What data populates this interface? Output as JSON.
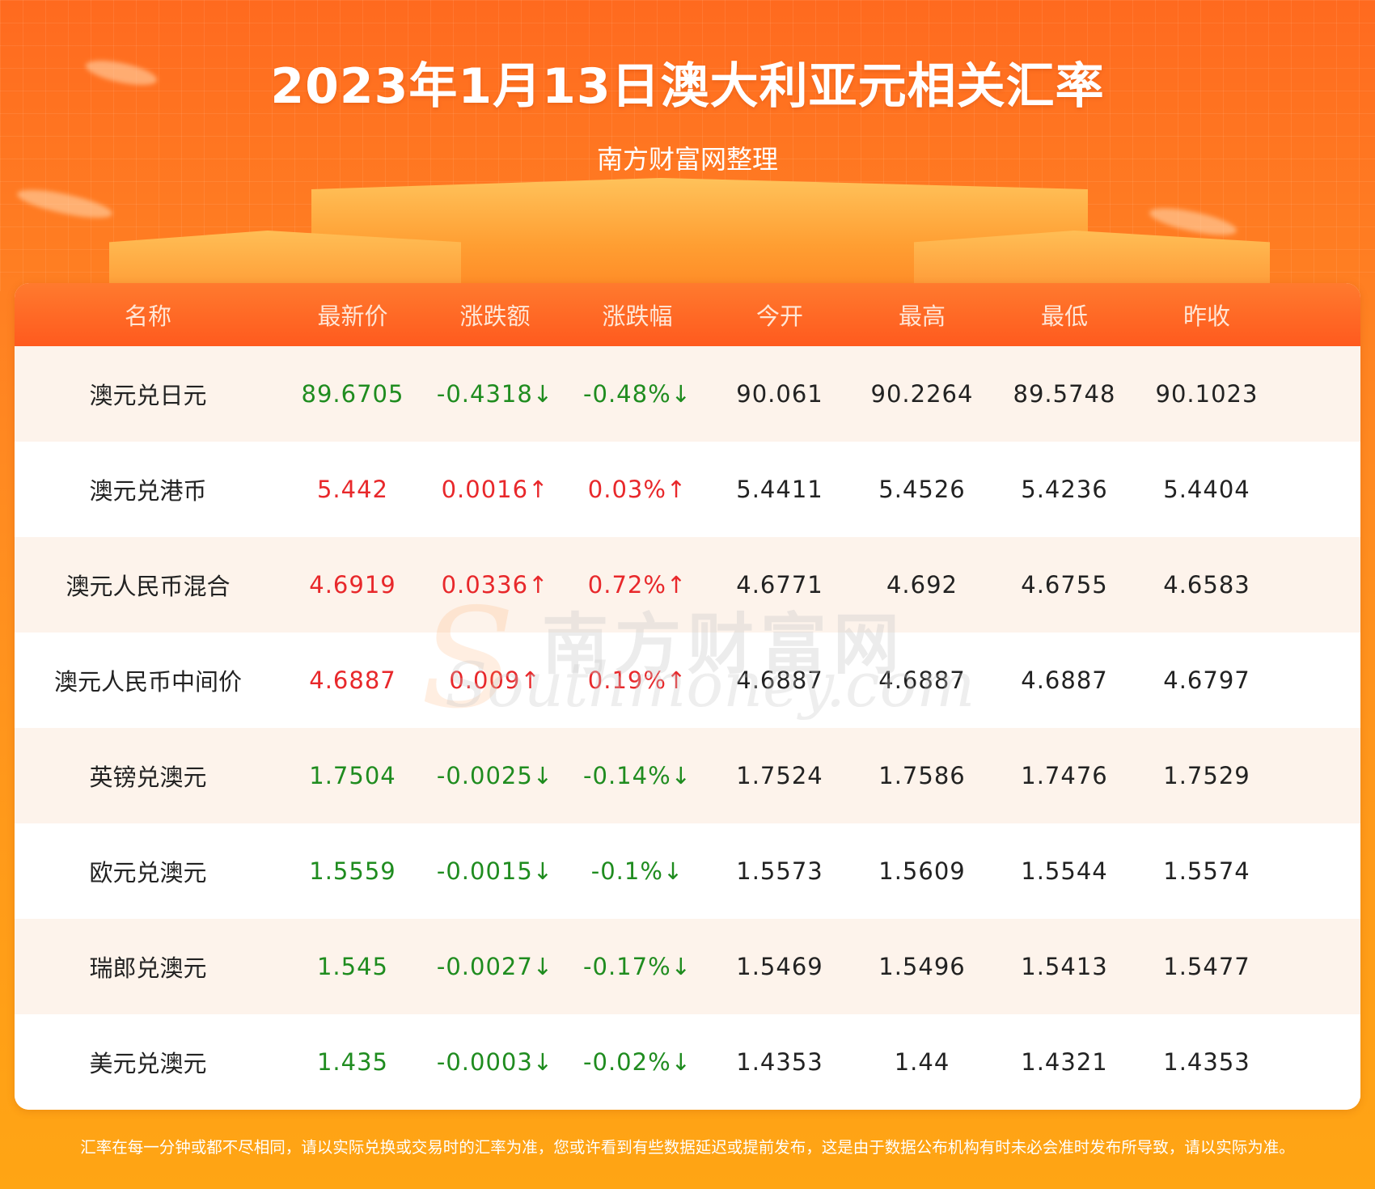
{
  "title": "2023年1月13日澳大利亚元相关汇率",
  "subtitle": "南方财富网整理",
  "table": {
    "headers": [
      "名称",
      "最新价",
      "涨跌额",
      "涨跌幅",
      "今开",
      "最高",
      "最低",
      "昨收"
    ],
    "rows": [
      {
        "name": "澳元兑日元",
        "latest": "89.6705",
        "change": "-0.4318↓",
        "change_pct": "-0.48%↓",
        "open": "90.061",
        "high": "90.2264",
        "low": "89.5748",
        "prev_close": "90.1023",
        "trend": "down"
      },
      {
        "name": "澳元兑港币",
        "latest": "5.442",
        "change": "0.0016↑",
        "change_pct": "0.03%↑",
        "open": "5.4411",
        "high": "5.4526",
        "low": "5.4236",
        "prev_close": "5.4404",
        "trend": "up"
      },
      {
        "name": "澳元人民币混合",
        "latest": "4.6919",
        "change": "0.0336↑",
        "change_pct": "0.72%↑",
        "open": "4.6771",
        "high": "4.692",
        "low": "4.6755",
        "prev_close": "4.6583",
        "trend": "up"
      },
      {
        "name": "澳元人民币中间价",
        "latest": "4.6887",
        "change": "0.009↑",
        "change_pct": "0.19%↑",
        "open": "4.6887",
        "high": "4.6887",
        "low": "4.6887",
        "prev_close": "4.6797",
        "trend": "up"
      },
      {
        "name": "英镑兑澳元",
        "latest": "1.7504",
        "change": "-0.0025↓",
        "change_pct": "-0.14%↓",
        "open": "1.7524",
        "high": "1.7586",
        "low": "1.7476",
        "prev_close": "1.7529",
        "trend": "down"
      },
      {
        "name": "欧元兑澳元",
        "latest": "1.5559",
        "change": "-0.0015↓",
        "change_pct": "-0.1%↓",
        "open": "1.5573",
        "high": "1.5609",
        "low": "1.5544",
        "prev_close": "1.5574",
        "trend": "down"
      },
      {
        "name": "瑞郎兑澳元",
        "latest": "1.545",
        "change": "-0.0027↓",
        "change_pct": "-0.17%↓",
        "open": "1.5469",
        "high": "1.5496",
        "low": "1.5413",
        "prev_close": "1.5477",
        "trend": "down"
      },
      {
        "name": "美元兑澳元",
        "latest": "1.435",
        "change": "-0.0003↓",
        "change_pct": "-0.02%↓",
        "open": "1.4353",
        "high": "1.44",
        "low": "1.4321",
        "prev_close": "1.4353",
        "trend": "down"
      }
    ]
  },
  "watermark": {
    "cn": "南方财富网",
    "en": "Southmoney.com"
  },
  "footer": "汇率在每一分钟或都不尽相同，请以实际兑换或交易时的汇率为准，您或许看到有些数据延迟或提前发布，这是由于数据公布机构有时未必会准时发布所导致，请以实际为准。",
  "colors": {
    "up": "#e8282b",
    "down": "#1f8c1f",
    "header_bg": "#ff5a1e",
    "row_alt": "#fdf3eb"
  }
}
